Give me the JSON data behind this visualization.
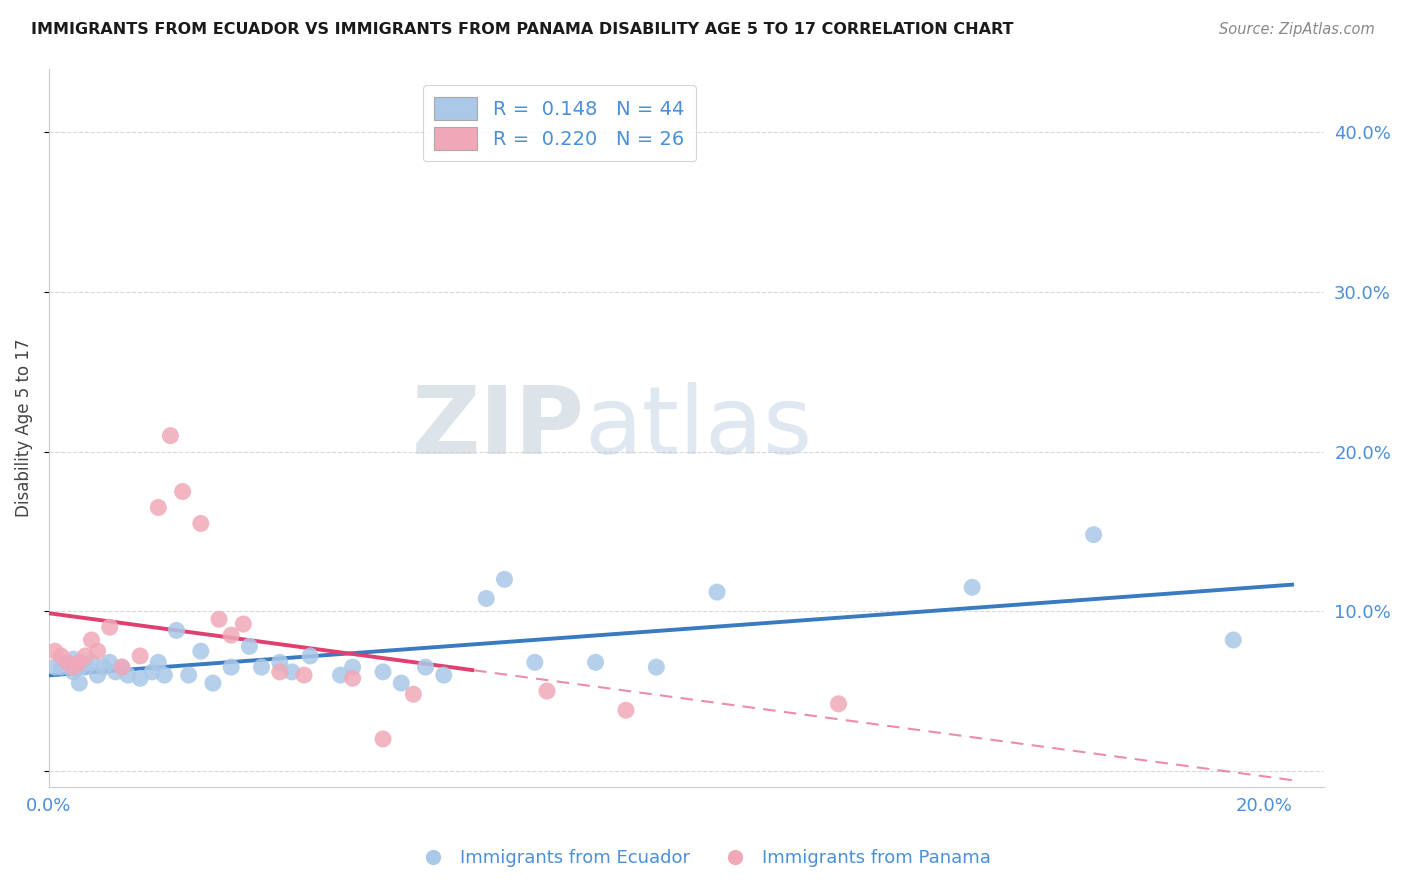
{
  "title": "IMMIGRANTS FROM ECUADOR VS IMMIGRANTS FROM PANAMA DISABILITY AGE 5 TO 17 CORRELATION CHART",
  "source": "Source: ZipAtlas.com",
  "ylabel": "Disability Age 5 to 17",
  "xlim": [
    0.0,
    0.21
  ],
  "ylim": [
    -0.01,
    0.44
  ],
  "yticks": [
    0.0,
    0.1,
    0.2,
    0.3,
    0.4
  ],
  "ytick_labels": [
    "",
    "10.0%",
    "20.0%",
    "30.0%",
    "40.0%"
  ],
  "xticks": [
    0.0,
    0.05,
    0.1,
    0.15,
    0.2
  ],
  "xtick_labels": [
    "0.0%",
    "",
    "",
    "",
    "20.0%"
  ],
  "ecuador_color": "#aac8e8",
  "panama_color": "#f0a8b8",
  "ecuador_line_color": "#3a7abf",
  "panama_line_color": "#e04070",
  "ecuador_line_solid_end": 0.2,
  "panama_line_solid_end": 0.07,
  "r_ecuador": 0.148,
  "n_ecuador": 44,
  "r_panama": 0.22,
  "n_panama": 26,
  "watermark_zip": "ZIP",
  "watermark_atlas": "atlas",
  "background_color": "#ffffff",
  "grid_color": "#d8d8d8",
  "ecuador_scatter_x": [
    0.001,
    0.002,
    0.003,
    0.004,
    0.004,
    0.005,
    0.005,
    0.006,
    0.007,
    0.008,
    0.009,
    0.01,
    0.011,
    0.012,
    0.013,
    0.015,
    0.017,
    0.018,
    0.019,
    0.021,
    0.023,
    0.025,
    0.027,
    0.03,
    0.033,
    0.035,
    0.038,
    0.04,
    0.043,
    0.048,
    0.05,
    0.055,
    0.058,
    0.062,
    0.065,
    0.072,
    0.075,
    0.08,
    0.09,
    0.1,
    0.11,
    0.152,
    0.172,
    0.195
  ],
  "ecuador_scatter_y": [
    0.065,
    0.065,
    0.068,
    0.07,
    0.062,
    0.065,
    0.055,
    0.065,
    0.068,
    0.06,
    0.065,
    0.068,
    0.062,
    0.065,
    0.06,
    0.058,
    0.062,
    0.068,
    0.06,
    0.088,
    0.06,
    0.075,
    0.055,
    0.065,
    0.078,
    0.065,
    0.068,
    0.062,
    0.072,
    0.06,
    0.065,
    0.062,
    0.055,
    0.065,
    0.06,
    0.108,
    0.12,
    0.068,
    0.068,
    0.065,
    0.112,
    0.115,
    0.148,
    0.082
  ],
  "panama_scatter_x": [
    0.001,
    0.002,
    0.003,
    0.004,
    0.005,
    0.006,
    0.007,
    0.008,
    0.01,
    0.012,
    0.015,
    0.018,
    0.02,
    0.022,
    0.025,
    0.028,
    0.03,
    0.032,
    0.038,
    0.042,
    0.05,
    0.055,
    0.06,
    0.082,
    0.095,
    0.13
  ],
  "panama_scatter_y": [
    0.075,
    0.072,
    0.068,
    0.065,
    0.068,
    0.072,
    0.082,
    0.075,
    0.09,
    0.065,
    0.072,
    0.165,
    0.21,
    0.175,
    0.155,
    0.095,
    0.085,
    0.092,
    0.062,
    0.06,
    0.058,
    0.02,
    0.048,
    0.05,
    0.038,
    0.042
  ]
}
